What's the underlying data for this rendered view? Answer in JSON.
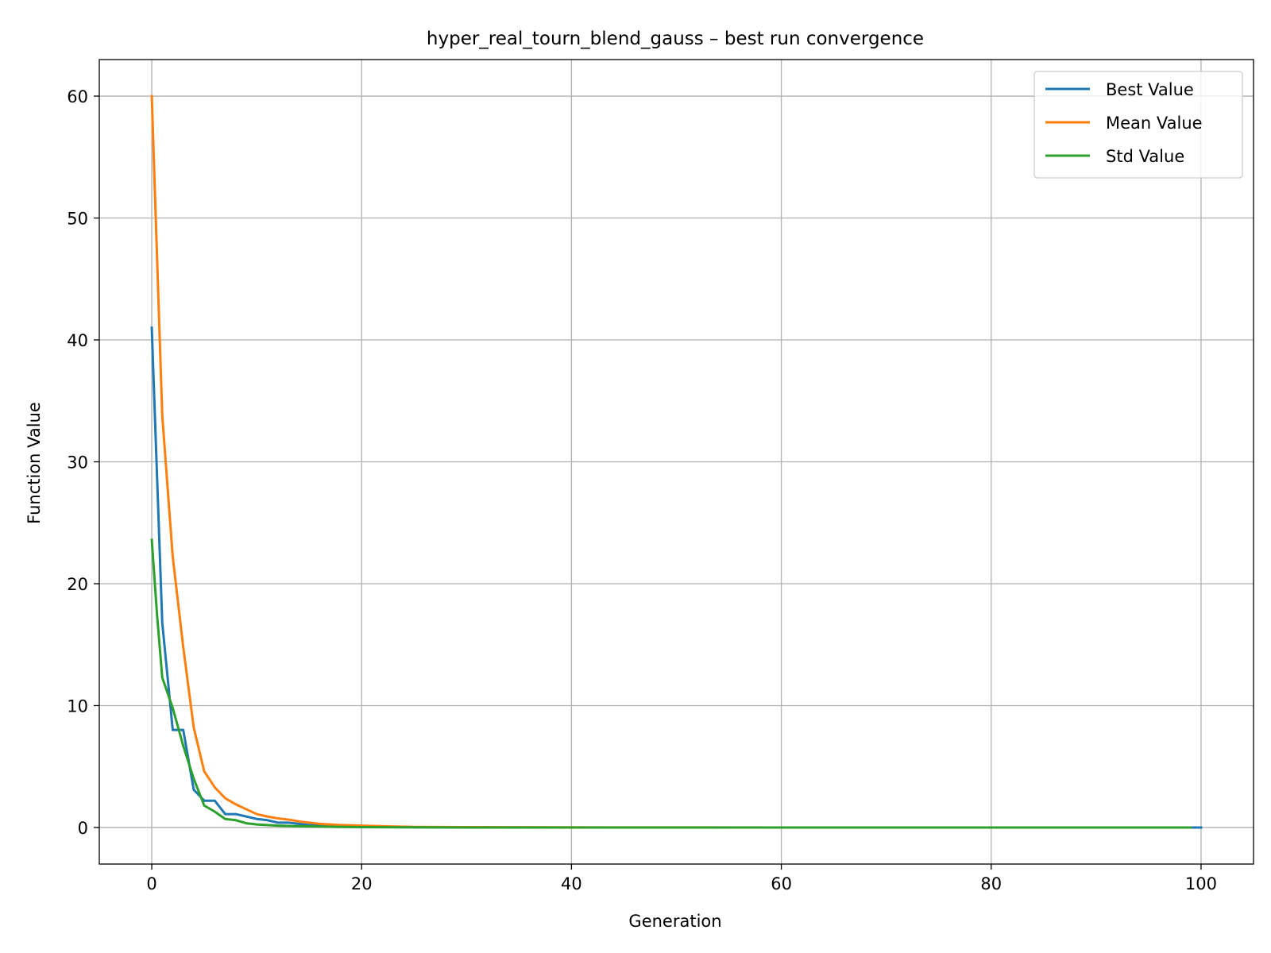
{
  "chart_data": {
    "type": "line",
    "title": "hyper_real_tourn_blend_gauss – best run convergence",
    "xlabel": "Generation",
    "ylabel": "Function Value",
    "xlim": [
      -5,
      105
    ],
    "ylim": [
      -3,
      63
    ],
    "xticks": [
      0,
      20,
      40,
      60,
      80,
      100
    ],
    "yticks": [
      0,
      10,
      20,
      30,
      40,
      50,
      60
    ],
    "grid": true,
    "legend": "top-right",
    "series": [
      {
        "name": "Best Value",
        "color": "#1f77b4",
        "x": [
          0,
          1,
          2,
          3,
          4,
          5,
          6,
          7,
          8,
          9,
          10,
          11,
          12,
          13,
          14,
          15,
          16,
          18,
          20,
          25,
          30,
          40,
          60,
          80,
          99,
          100
        ],
        "y": [
          41.0,
          16.8,
          8.0,
          8.0,
          3.1,
          2.2,
          2.2,
          1.1,
          1.1,
          0.9,
          0.7,
          0.6,
          0.4,
          0.4,
          0.3,
          0.2,
          0.15,
          0.1,
          0.05,
          0.02,
          0.01,
          0.0,
          0.0,
          0.0,
          0.0,
          0.0
        ]
      },
      {
        "name": "Mean Value",
        "color": "#ff7f0e",
        "x": [
          0,
          1,
          2,
          3,
          4,
          5,
          6,
          7,
          8,
          9,
          10,
          11,
          12,
          13,
          14,
          15,
          16,
          17,
          18,
          20,
          22,
          25,
          30,
          40,
          60,
          80,
          99
        ],
        "y": [
          60.0,
          33.8,
          22.2,
          14.8,
          8.2,
          4.6,
          3.3,
          2.4,
          1.9,
          1.5,
          1.1,
          0.9,
          0.75,
          0.65,
          0.5,
          0.4,
          0.3,
          0.25,
          0.2,
          0.15,
          0.1,
          0.05,
          0.03,
          0.01,
          0.0,
          0.0,
          0.0
        ]
      },
      {
        "name": "Std Value",
        "color": "#2ca02c",
        "x": [
          0,
          0.5,
          1,
          2,
          3,
          4,
          5,
          6,
          7,
          8,
          9,
          10,
          11,
          12,
          14,
          16,
          18,
          20,
          25,
          30,
          40,
          60,
          80,
          99
        ],
        "y": [
          23.6,
          17.5,
          12.3,
          9.8,
          6.7,
          4.0,
          1.8,
          1.3,
          0.7,
          0.6,
          0.35,
          0.25,
          0.2,
          0.15,
          0.1,
          0.08,
          0.05,
          0.03,
          0.01,
          0.0,
          0.0,
          0.0,
          0.0,
          0.0
        ]
      }
    ]
  }
}
